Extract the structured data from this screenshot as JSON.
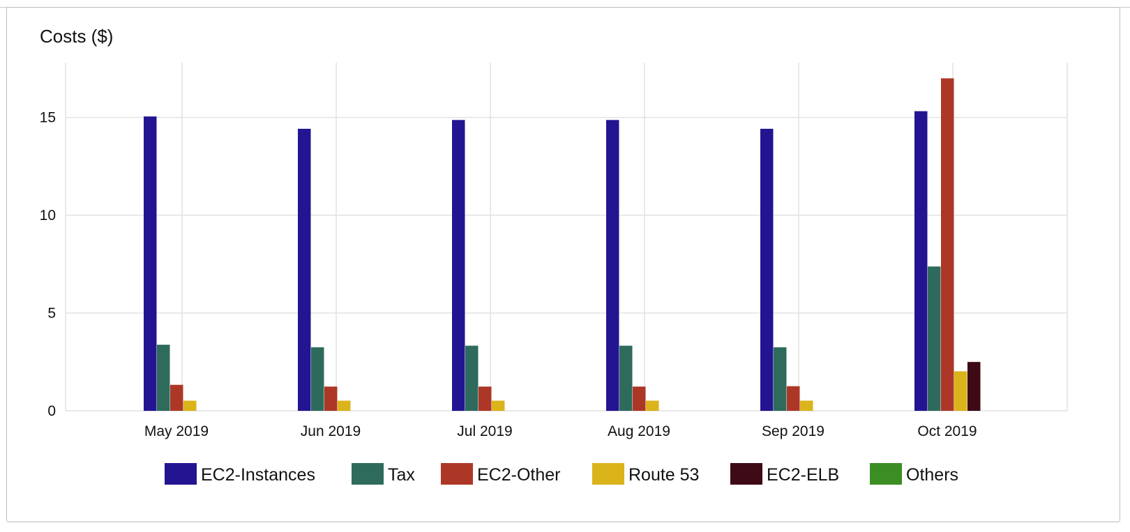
{
  "panel": {
    "title": "Costs ($)"
  },
  "chart_data": {
    "type": "bar",
    "title": "Costs ($)",
    "xlabel": "",
    "ylabel": "",
    "categories": [
      "May 2019",
      "Jun 2019",
      "Jul 2019",
      "Aug 2019",
      "Sep 2019",
      "Oct 2019"
    ],
    "series": [
      {
        "name": "EC2-Instances",
        "color": "#231591",
        "values": [
          15.05,
          14.42,
          14.87,
          14.87,
          14.42,
          15.32
        ]
      },
      {
        "name": "Tax",
        "color": "#2e6b5d",
        "values": [
          3.38,
          3.25,
          3.33,
          3.33,
          3.25,
          7.38
        ]
      },
      {
        "name": "EC2-Other",
        "color": "#ad3726",
        "values": [
          1.33,
          1.24,
          1.24,
          1.24,
          1.26,
          17.0
        ]
      },
      {
        "name": "Route 53",
        "color": "#dbb31b",
        "values": [
          0.52,
          0.52,
          0.52,
          0.52,
          0.52,
          2.02
        ]
      },
      {
        "name": "EC2-ELB",
        "color": "#3d0a16",
        "values": [
          0,
          0,
          0,
          0,
          0,
          2.5
        ]
      },
      {
        "name": "Others",
        "color": "#3b8e24",
        "values": [
          0,
          0,
          0,
          0,
          0,
          0
        ]
      }
    ],
    "ylim": [
      0,
      17.8
    ],
    "yticks": [
      0,
      5,
      10,
      15
    ],
    "grid": true,
    "legend": "bottom"
  }
}
